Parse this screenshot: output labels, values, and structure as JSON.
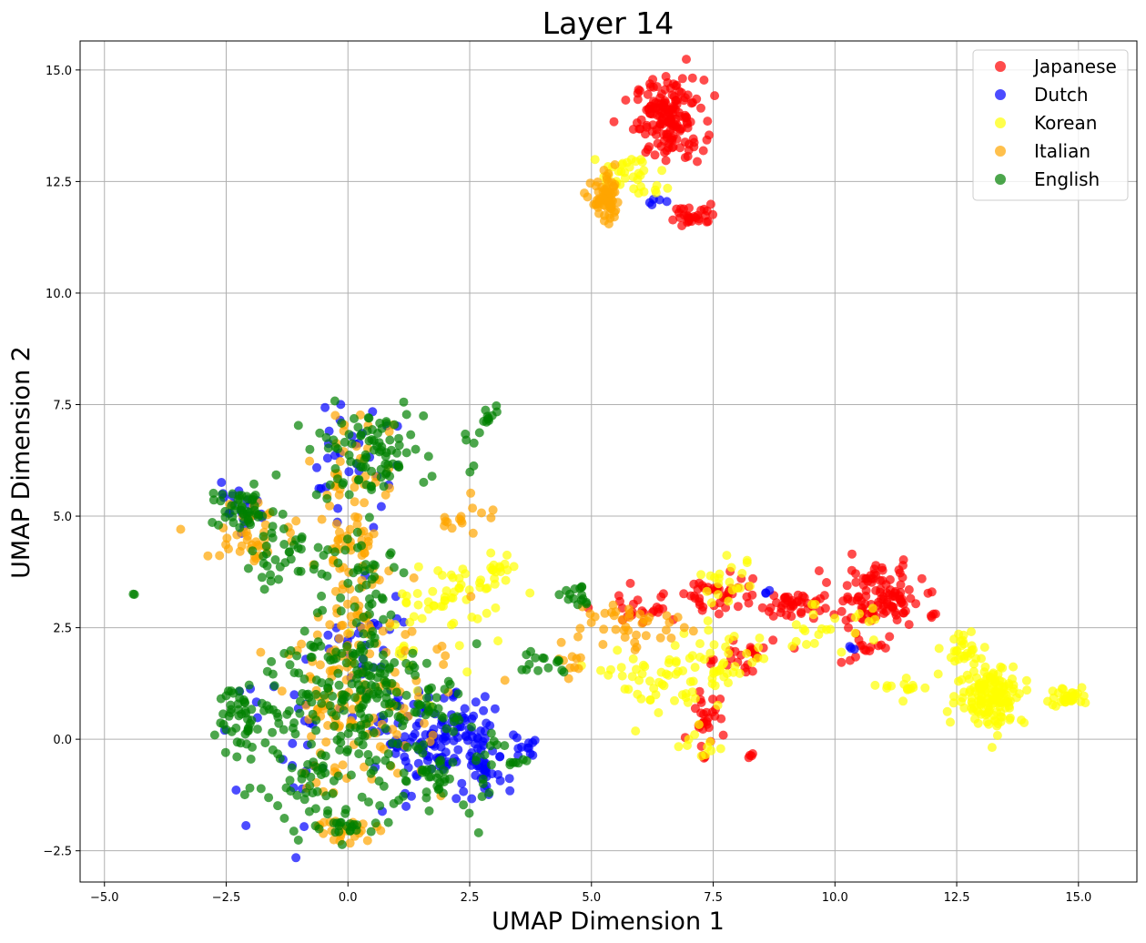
{
  "chart_data": {
    "type": "scatter",
    "title": "Layer 14",
    "xlabel": "UMAP Dimension 1",
    "ylabel": "UMAP Dimension 2",
    "xlim": [
      -5.5,
      16.2
    ],
    "ylim": [
      -3.2,
      15.65
    ],
    "grid": true,
    "legend_position": "top-right",
    "x_ticks": [
      -5.0,
      -2.5,
      0.0,
      2.5,
      5.0,
      7.5,
      10.0,
      12.5,
      15.0
    ],
    "x_tick_labels": [
      "−5.0",
      "−2.5",
      "0.0",
      "2.5",
      "5.0",
      "7.5",
      "10.0",
      "12.5",
      "15.0"
    ],
    "y_ticks": [
      -2.5,
      0.0,
      2.5,
      5.0,
      7.5,
      10.0,
      12.5,
      15.0
    ],
    "y_tick_labels": [
      "−2.5",
      "0.0",
      "2.5",
      "5.0",
      "7.5",
      "10.0",
      "12.5",
      "15.0"
    ],
    "series": [
      {
        "name": "Japanese",
        "color": "#ff0000",
        "clusters": [
          {
            "cx": 6.6,
            "cy": 13.9,
            "sx": 0.35,
            "sy": 0.45,
            "n": 160
          },
          {
            "cx": 7.1,
            "cy": 11.75,
            "sx": 0.25,
            "sy": 0.12,
            "n": 30
          },
          {
            "cx": 7.6,
            "cy": 3.3,
            "sx": 0.35,
            "sy": 0.25,
            "n": 40
          },
          {
            "cx": 9.1,
            "cy": 3.0,
            "sx": 0.3,
            "sy": 0.15,
            "n": 40
          },
          {
            "cx": 10.9,
            "cy": 3.2,
            "sx": 0.45,
            "sy": 0.35,
            "n": 110
          },
          {
            "cx": 7.3,
            "cy": 0.5,
            "sx": 0.15,
            "sy": 0.35,
            "n": 30
          },
          {
            "cx": 8.0,
            "cy": 1.8,
            "sx": 0.4,
            "sy": 0.25,
            "n": 25
          },
          {
            "cx": 6.0,
            "cy": 2.9,
            "sx": 0.5,
            "sy": 0.2,
            "n": 25
          },
          {
            "cx": 10.6,
            "cy": 2.1,
            "sx": 0.4,
            "sy": 0.25,
            "n": 15
          },
          {
            "cx": 12.0,
            "cy": 2.8,
            "sx": 0.03,
            "sy": 0.03,
            "n": 3
          },
          {
            "cx": 8.3,
            "cy": -0.35,
            "sx": 0.05,
            "sy": 0.05,
            "n": 4
          }
        ]
      },
      {
        "name": "Dutch",
        "color": "#0000ff",
        "clusters": [
          {
            "cx": 1.9,
            "cy": 0.0,
            "sx": 0.6,
            "sy": 0.5,
            "n": 140
          },
          {
            "cx": 2.8,
            "cy": -0.8,
            "sx": 0.25,
            "sy": 0.3,
            "n": 30
          },
          {
            "cx": -2.3,
            "cy": 5.1,
            "sx": 0.3,
            "sy": 0.25,
            "n": 20
          },
          {
            "cx": 0.0,
            "cy": 6.3,
            "sx": 0.5,
            "sy": 0.6,
            "n": 30
          },
          {
            "cx": 0.3,
            "cy": 2.0,
            "sx": 0.5,
            "sy": 0.8,
            "n": 30
          },
          {
            "cx": -0.8,
            "cy": 0.0,
            "sx": 0.8,
            "sy": 0.8,
            "n": 30
          },
          {
            "cx": 3.6,
            "cy": -0.2,
            "sx": 0.15,
            "sy": 0.1,
            "n": 10
          },
          {
            "cx": 6.5,
            "cy": 12.05,
            "sx": 0.3,
            "sy": 0.05,
            "n": 5
          },
          {
            "cx": 8.6,
            "cy": 3.3,
            "sx": 0.05,
            "sy": 0.05,
            "n": 3
          },
          {
            "cx": 10.4,
            "cy": 2.05,
            "sx": 0.04,
            "sy": 0.04,
            "n": 3
          }
        ]
      },
      {
        "name": "Korean",
        "color": "#ffff00",
        "clusters": [
          {
            "cx": 13.2,
            "cy": 1.0,
            "sx": 0.35,
            "sy": 0.35,
            "n": 150
          },
          {
            "cx": 14.8,
            "cy": 0.95,
            "sx": 0.2,
            "sy": 0.12,
            "n": 35
          },
          {
            "cx": 12.7,
            "cy": 2.0,
            "sx": 0.3,
            "sy": 0.15,
            "n": 25
          },
          {
            "cx": 11.5,
            "cy": 1.2,
            "sx": 0.25,
            "sy": 0.15,
            "n": 15
          },
          {
            "cx": 5.8,
            "cy": 12.6,
            "sx": 0.35,
            "sy": 0.25,
            "n": 35
          },
          {
            "cx": 7.5,
            "cy": 1.6,
            "sx": 0.6,
            "sy": 0.4,
            "n": 45
          },
          {
            "cx": 6.3,
            "cy": 1.3,
            "sx": 0.5,
            "sy": 0.4,
            "n": 40
          },
          {
            "cx": 2.1,
            "cy": 3.3,
            "sx": 0.6,
            "sy": 0.3,
            "n": 45
          },
          {
            "cx": 3.1,
            "cy": 3.8,
            "sx": 0.15,
            "sy": 0.2,
            "n": 15
          },
          {
            "cx": 7.8,
            "cy": 3.5,
            "sx": 0.3,
            "sy": 0.25,
            "n": 20
          },
          {
            "cx": 9.8,
            "cy": 2.4,
            "sx": 0.6,
            "sy": 0.3,
            "n": 25
          },
          {
            "cx": 1.3,
            "cy": 2.0,
            "sx": 0.5,
            "sy": 0.6,
            "n": 20
          },
          {
            "cx": 7.2,
            "cy": -0.1,
            "sx": 0.25,
            "sy": 0.15,
            "n": 10
          }
        ]
      },
      {
        "name": "Italian",
        "color": "#ffa500",
        "clusters": [
          {
            "cx": 5.3,
            "cy": 12.05,
            "sx": 0.15,
            "sy": 0.25,
            "n": 70
          },
          {
            "cx": 0.1,
            "cy": 3.5,
            "sx": 0.35,
            "sy": 1.4,
            "n": 90
          },
          {
            "cx": 0.0,
            "cy": 0.6,
            "sx": 0.8,
            "sy": 0.9,
            "n": 100
          },
          {
            "cx": 0.0,
            "cy": -2.0,
            "sx": 0.3,
            "sy": 0.15,
            "n": 25
          },
          {
            "cx": -1.9,
            "cy": 4.6,
            "sx": 0.5,
            "sy": 0.4,
            "n": 40
          },
          {
            "cx": 2.4,
            "cy": 5.0,
            "sx": 0.3,
            "sy": 0.2,
            "n": 15
          },
          {
            "cx": 5.8,
            "cy": 2.6,
            "sx": 0.6,
            "sy": 0.3,
            "n": 40
          },
          {
            "cx": 0.2,
            "cy": 6.2,
            "sx": 0.5,
            "sy": 0.5,
            "n": 25
          },
          {
            "cx": 1.5,
            "cy": 1.5,
            "sx": 0.7,
            "sy": 0.7,
            "n": 20
          },
          {
            "cx": 4.6,
            "cy": 1.8,
            "sx": 0.2,
            "sy": 0.15,
            "n": 10
          }
        ]
      },
      {
        "name": "English",
        "color": "#008000",
        "clusters": [
          {
            "cx": -2.2,
            "cy": 5.1,
            "sx": 0.3,
            "sy": 0.25,
            "n": 45
          },
          {
            "cx": -1.3,
            "cy": 4.2,
            "sx": 0.5,
            "sy": 0.35,
            "n": 40
          },
          {
            "cx": 0.4,
            "cy": 6.4,
            "sx": 0.6,
            "sy": 0.5,
            "n": 90
          },
          {
            "cx": 0.4,
            "cy": 3.6,
            "sx": 0.4,
            "sy": 0.6,
            "n": 40
          },
          {
            "cx": 0.0,
            "cy": 1.3,
            "sx": 0.8,
            "sy": 0.7,
            "n": 160
          },
          {
            "cx": -2.0,
            "cy": 0.4,
            "sx": 0.35,
            "sy": 0.6,
            "n": 60
          },
          {
            "cx": 1.8,
            "cy": -0.7,
            "sx": 0.6,
            "sy": 0.5,
            "n": 70
          },
          {
            "cx": -0.6,
            "cy": -0.8,
            "sx": 0.6,
            "sy": 0.6,
            "n": 60
          },
          {
            "cx": 0.0,
            "cy": -2.0,
            "sx": 0.3,
            "sy": 0.15,
            "n": 20
          },
          {
            "cx": 2.9,
            "cy": 7.2,
            "sx": 0.1,
            "sy": 0.1,
            "n": 10
          },
          {
            "cx": 4.7,
            "cy": 3.2,
            "sx": 0.15,
            "sy": 0.2,
            "n": 15
          },
          {
            "cx": 3.9,
            "cy": 1.7,
            "sx": 0.35,
            "sy": 0.15,
            "n": 15
          },
          {
            "cx": 2.5,
            "cy": 6.6,
            "sx": 0.1,
            "sy": 0.3,
            "n": 6
          },
          {
            "cx": -4.4,
            "cy": 3.25,
            "sx": 0.01,
            "sy": 0.01,
            "n": 2
          },
          {
            "cx": 1.6,
            "cy": 0.7,
            "sx": 0.5,
            "sy": 0.2,
            "n": 20
          },
          {
            "cx": 3.5,
            "cy": -0.5,
            "sx": 0.1,
            "sy": 0.05,
            "n": 6
          }
        ]
      }
    ]
  }
}
